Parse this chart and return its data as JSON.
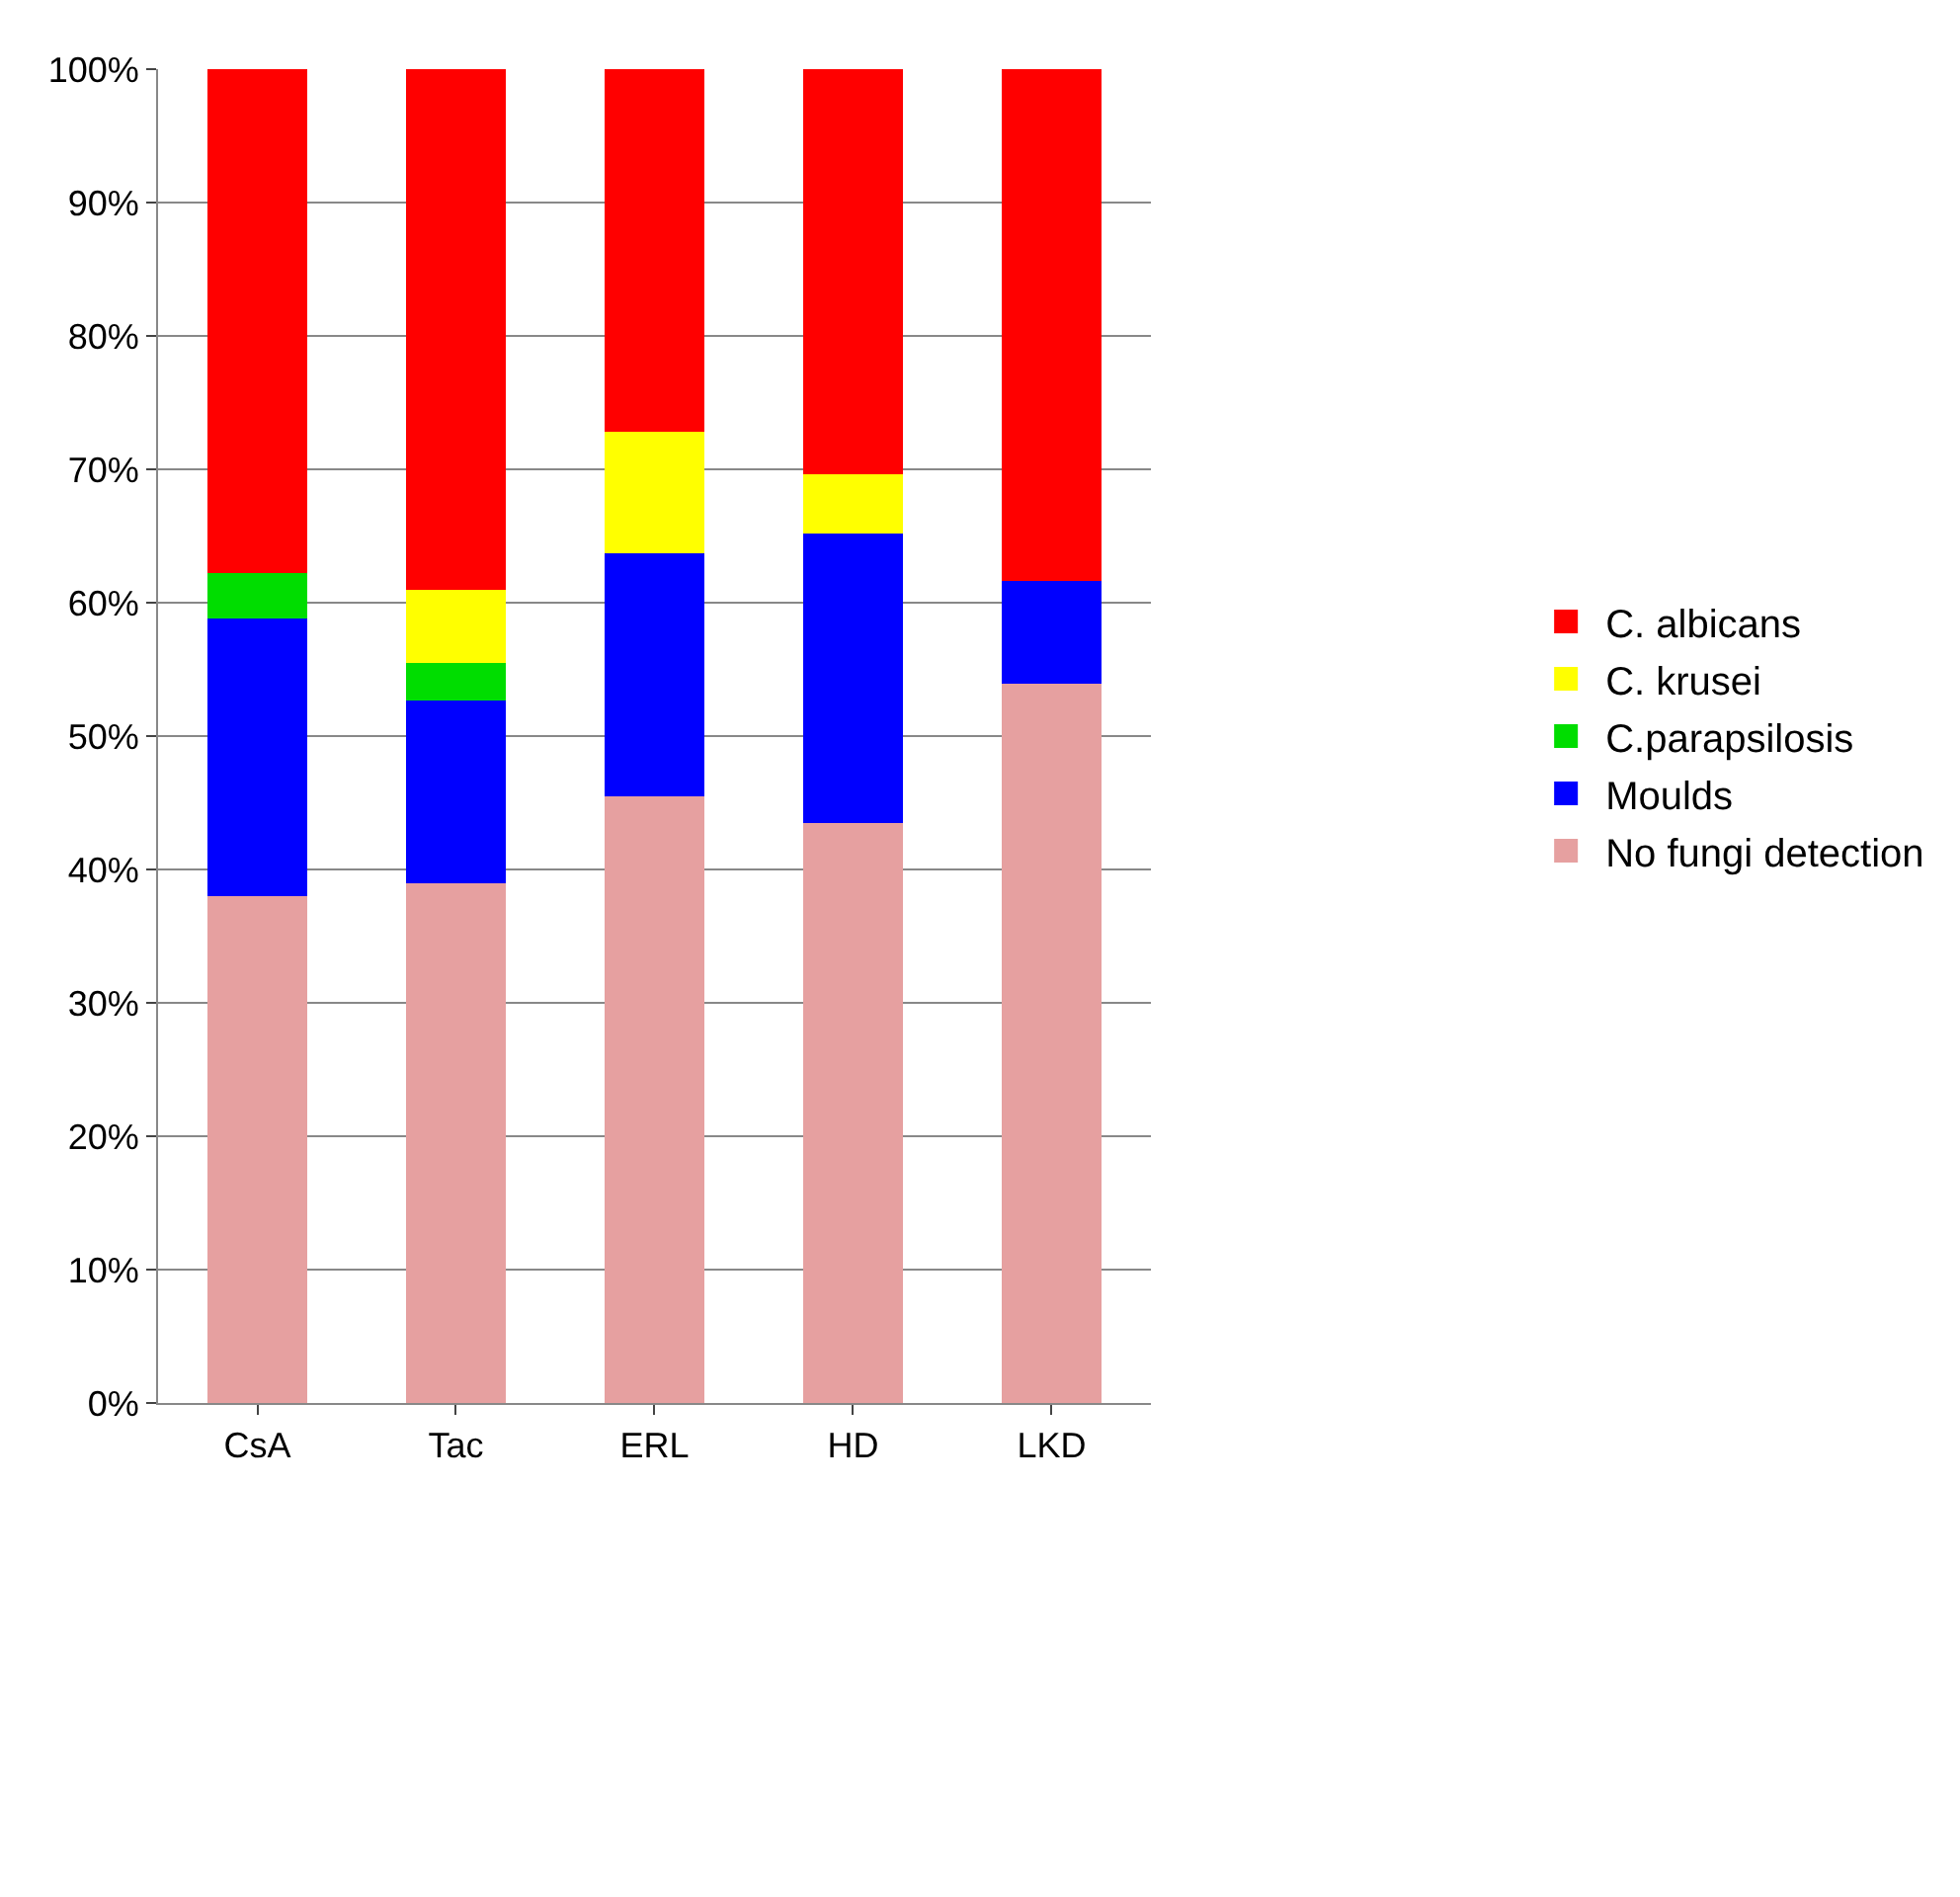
{
  "chart_data": {
    "type": "bar",
    "stacked": true,
    "categories": [
      "CsA",
      "Tac",
      "ERL",
      "HD",
      "LKD"
    ],
    "series": [
      {
        "name": "No fungi detection",
        "color": "#e6a0a0",
        "values": [
          38,
          39,
          45.5,
          43.5,
          53.9
        ]
      },
      {
        "name": "Moulds",
        "color": "#0000ff",
        "values": [
          20.8,
          13.7,
          18.2,
          21.7,
          7.7
        ]
      },
      {
        "name": "C.parapsilosis",
        "color": "#00dd00",
        "values": [
          3.4,
          2.8,
          0,
          0,
          0
        ]
      },
      {
        "name": "C. krusei",
        "color": "#ffff00",
        "values": [
          0,
          5.5,
          9.1,
          4.4,
          0
        ]
      },
      {
        "name": "C. albicans",
        "color": "#ff0000",
        "values": [
          37.8,
          39,
          27.2,
          30.4,
          38.4
        ]
      }
    ],
    "ylim": [
      0,
      100
    ],
    "yticks": [
      {
        "value": 0,
        "label": "0%"
      },
      {
        "value": 10,
        "label": "10%"
      },
      {
        "value": 20,
        "label": "20%"
      },
      {
        "value": 30,
        "label": "30%"
      },
      {
        "value": 40,
        "label": "40%"
      },
      {
        "value": 50,
        "label": "50%"
      },
      {
        "value": 60,
        "label": "60%"
      },
      {
        "value": 70,
        "label": "70%"
      },
      {
        "value": 80,
        "label": "80%"
      },
      {
        "value": 90,
        "label": "90%"
      },
      {
        "value": 100,
        "label": "100%"
      }
    ],
    "grid": "y",
    "legend": "right"
  }
}
